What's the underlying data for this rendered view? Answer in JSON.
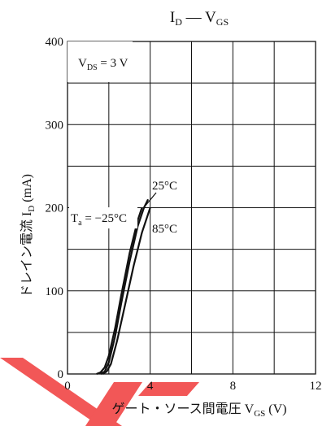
{
  "chart_data": {
    "type": "line",
    "title": {
      "main": "I",
      "main_sub": "D",
      "sep": " — ",
      "second": "V",
      "second_sub": "GS"
    },
    "xlabel": {
      "text": "ゲート・ソース間電圧  V",
      "sub": "GS",
      "unit": " (V)"
    },
    "ylabel": {
      "text": "ドレイン電流  I",
      "sub": "D",
      "unit": " (mA)"
    },
    "xlim": [
      0,
      12
    ],
    "ylim": [
      0,
      400
    ],
    "xticks": [
      0,
      4,
      8,
      12
    ],
    "yticks": [
      0,
      100,
      200,
      300,
      400
    ],
    "grid": true,
    "condition": {
      "text": "V",
      "sub": "DS",
      "rest": " = 3 V"
    },
    "series": [
      {
        "name": "Ta = −25°C",
        "x": [
          1.4,
          1.6,
          1.8,
          2.0,
          2.3,
          2.6,
          3.0,
          3.4,
          3.6
        ],
        "y": [
          0,
          2,
          8,
          22,
          55,
          95,
          145,
          185,
          200
        ]
      },
      {
        "name": "25°C",
        "x": [
          1.6,
          1.8,
          2.0,
          2.3,
          2.6,
          3.0,
          3.4,
          3.7,
          3.9
        ],
        "y": [
          0,
          3,
          14,
          45,
          85,
          135,
          178,
          200,
          210
        ]
      },
      {
        "name": "85°C",
        "x": [
          1.7,
          1.9,
          2.1,
          2.4,
          2.8,
          3.2,
          3.6,
          4.0
        ],
        "y": [
          0,
          3,
          12,
          40,
          85,
          130,
          170,
          200
        ]
      }
    ],
    "annotations": [
      {
        "label": "T",
        "sub": "a",
        "rest": " = −25°C"
      },
      {
        "label": "25°C"
      },
      {
        "label": "85°C"
      }
    ]
  },
  "watermark_color": "#f03a3a"
}
